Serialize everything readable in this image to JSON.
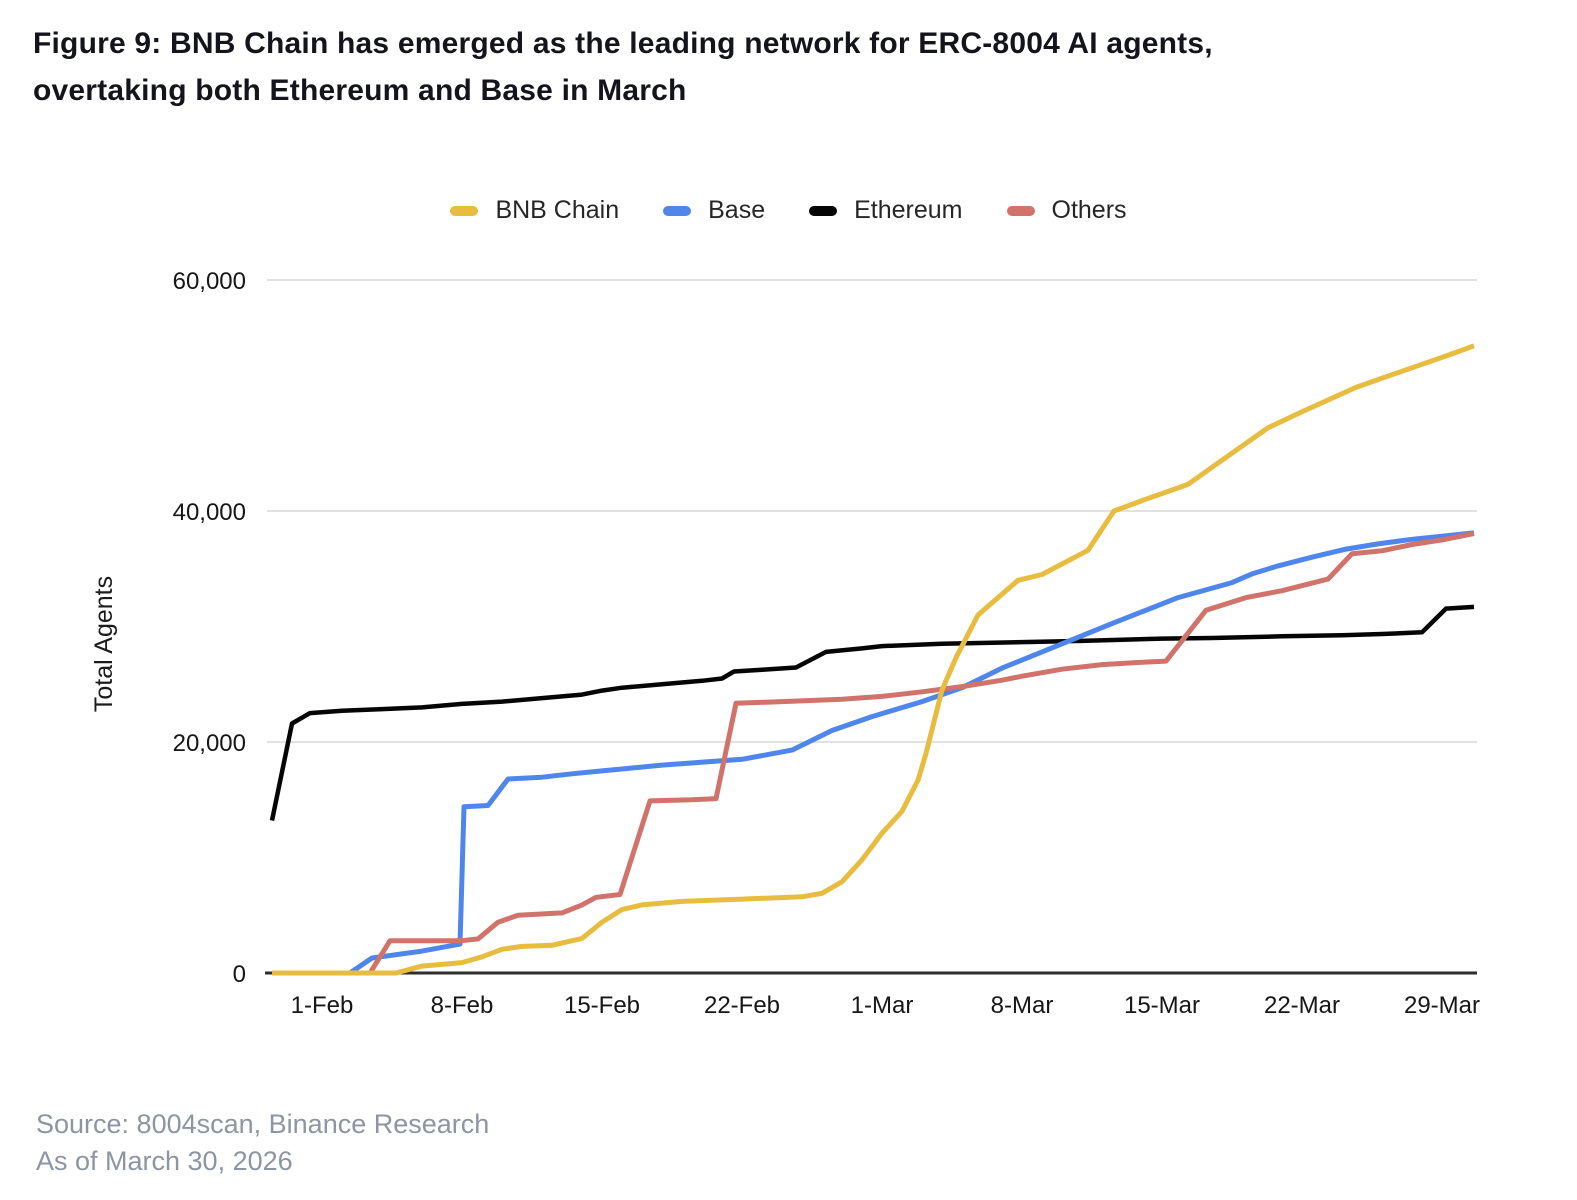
{
  "figure": {
    "title_line1": "Figure 9: BNB Chain has emerged as the leading network for ERC-8004 AI agents,",
    "title_line2": "overtaking both Ethereum and Base in March"
  },
  "source": {
    "line1": "Source: 8004scan, Binance Research",
    "line2": "As of March 30, 2026"
  },
  "chart_data": {
    "type": "line",
    "title": "Figure 9: BNB Chain has emerged as the leading network for ERC-8004 AI agents, overtaking both Ethereum and Base in March",
    "xlabel": "",
    "ylabel": "Total Agents",
    "ylim": [
      0,
      60000
    ],
    "grid": "horizontal-only",
    "legend_position": "top-center",
    "x_axis_note": "x values are days since Jan 30, 2026; axis spans late Jan to Mar 30, 2026",
    "y_ticks": [
      {
        "value": 0,
        "label": "0"
      },
      {
        "value": 20000,
        "label": "20,000"
      },
      {
        "value": 40000,
        "label": "40,000"
      },
      {
        "value": 60000,
        "label": "60,000"
      }
    ],
    "x_ticks": [
      {
        "day": 2,
        "label": "1-Feb"
      },
      {
        "day": 9,
        "label": "8-Feb"
      },
      {
        "day": 16,
        "label": "15-Feb"
      },
      {
        "day": 23,
        "label": "22-Feb"
      },
      {
        "day": 30,
        "label": "1-Mar"
      },
      {
        "day": 37,
        "label": "8-Mar"
      },
      {
        "day": 44,
        "label": "15-Mar"
      },
      {
        "day": 51,
        "label": "22-Mar"
      },
      {
        "day": 58,
        "label": "29-Mar"
      }
    ],
    "draw_order": [
      2,
      1,
      3,
      0
    ],
    "series": [
      {
        "name": "BNB Chain",
        "color": "#E8BC3F",
        "stroke_width": 5,
        "points": [
          [
            -0.5,
            0
          ],
          [
            5.7,
            0
          ],
          [
            7,
            600
          ],
          [
            9,
            900
          ],
          [
            10,
            1400
          ],
          [
            11,
            2050
          ],
          [
            12,
            2300
          ],
          [
            13.5,
            2400
          ],
          [
            15,
            3000
          ],
          [
            16,
            4400
          ],
          [
            17,
            5500
          ],
          [
            18,
            5900
          ],
          [
            20,
            6200
          ],
          [
            23,
            6400
          ],
          [
            26,
            6600
          ],
          [
            27,
            6900
          ],
          [
            28,
            7900
          ],
          [
            29,
            9800
          ],
          [
            30,
            12100
          ],
          [
            31,
            14000
          ],
          [
            31.8,
            16700
          ],
          [
            32.2,
            19000
          ],
          [
            33,
            24500
          ],
          [
            33.7,
            27300
          ],
          [
            34.8,
            31000
          ],
          [
            36,
            32800
          ],
          [
            36.8,
            34000
          ],
          [
            38,
            34500
          ],
          [
            40.3,
            36600
          ],
          [
            41.6,
            40000
          ],
          [
            43,
            40900
          ],
          [
            45.3,
            42300
          ],
          [
            47,
            44400
          ],
          [
            49.3,
            47200
          ],
          [
            51,
            48600
          ],
          [
            53.7,
            50700
          ],
          [
            55,
            51500
          ],
          [
            57,
            52700
          ],
          [
            58.5,
            53600
          ],
          [
            59.6,
            54300
          ]
        ]
      },
      {
        "name": "Base",
        "color": "#4E86EC",
        "stroke_width": 5,
        "points": [
          [
            -0.5,
            0
          ],
          [
            3.4,
            0
          ],
          [
            4.5,
            1300
          ],
          [
            7,
            1900
          ],
          [
            8.9,
            2500
          ],
          [
            9.1,
            14400
          ],
          [
            10.3,
            14500
          ],
          [
            11.3,
            16800
          ],
          [
            13,
            16950
          ],
          [
            14.5,
            17250
          ],
          [
            16,
            17500
          ],
          [
            19,
            18000
          ],
          [
            23,
            18500
          ],
          [
            25.5,
            19300
          ],
          [
            27.5,
            21000
          ],
          [
            29.5,
            22200
          ],
          [
            32,
            23500
          ],
          [
            34,
            24700
          ],
          [
            36,
            26400
          ],
          [
            38,
            27800
          ],
          [
            39,
            28500
          ],
          [
            41.5,
            30250
          ],
          [
            44.8,
            32500
          ],
          [
            47.5,
            33800
          ],
          [
            48.5,
            34550
          ],
          [
            49.8,
            35250
          ],
          [
            51.5,
            36000
          ],
          [
            53.2,
            36700
          ],
          [
            54.8,
            37150
          ],
          [
            56.5,
            37550
          ],
          [
            59.6,
            38100
          ]
        ]
      },
      {
        "name": "Ethereum",
        "color": "#050505",
        "stroke_width": 4.5,
        "points": [
          [
            -0.5,
            13200
          ],
          [
            0.5,
            21600
          ],
          [
            1.4,
            22500
          ],
          [
            3,
            22700
          ],
          [
            5,
            22850
          ],
          [
            7,
            23000
          ],
          [
            9,
            23300
          ],
          [
            11,
            23500
          ],
          [
            13,
            23800
          ],
          [
            15,
            24100
          ],
          [
            16,
            24450
          ],
          [
            17,
            24700
          ],
          [
            19,
            25000
          ],
          [
            21,
            25300
          ],
          [
            22,
            25500
          ],
          [
            22.6,
            26100
          ],
          [
            24,
            26250
          ],
          [
            25.7,
            26450
          ],
          [
            27.2,
            27800
          ],
          [
            29,
            28100
          ],
          [
            30,
            28300
          ],
          [
            33,
            28500
          ],
          [
            37,
            28650
          ],
          [
            40,
            28750
          ],
          [
            44,
            28950
          ],
          [
            46.5,
            29000
          ],
          [
            50,
            29150
          ],
          [
            53,
            29250
          ],
          [
            55,
            29350
          ],
          [
            57,
            29500
          ],
          [
            58.2,
            31550
          ],
          [
            59.6,
            31700
          ]
        ]
      },
      {
        "name": "Others",
        "color": "#D1736B",
        "stroke_width": 5,
        "points": [
          [
            -0.5,
            0
          ],
          [
            4.4,
            0
          ],
          [
            5.4,
            2800
          ],
          [
            9,
            2800
          ],
          [
            9.8,
            2950
          ],
          [
            10.8,
            4400
          ],
          [
            11.8,
            5000
          ],
          [
            14,
            5200
          ],
          [
            15,
            5900
          ],
          [
            15.7,
            6550
          ],
          [
            16.9,
            6800
          ],
          [
            18.4,
            14900
          ],
          [
            20.5,
            15000
          ],
          [
            21.7,
            15100
          ],
          [
            22.7,
            23350
          ],
          [
            25,
            23500
          ],
          [
            28,
            23700
          ],
          [
            30,
            23950
          ],
          [
            32,
            24350
          ],
          [
            34,
            24800
          ],
          [
            36,
            25350
          ],
          [
            37,
            25700
          ],
          [
            39,
            26300
          ],
          [
            41,
            26700
          ],
          [
            43,
            26900
          ],
          [
            44.2,
            27000
          ],
          [
            46.2,
            31400
          ],
          [
            48.2,
            32500
          ],
          [
            50,
            33100
          ],
          [
            52.3,
            34100
          ],
          [
            53.5,
            36300
          ],
          [
            55,
            36550
          ],
          [
            56.5,
            37100
          ],
          [
            58,
            37500
          ],
          [
            59.6,
            38050
          ]
        ]
      }
    ]
  }
}
